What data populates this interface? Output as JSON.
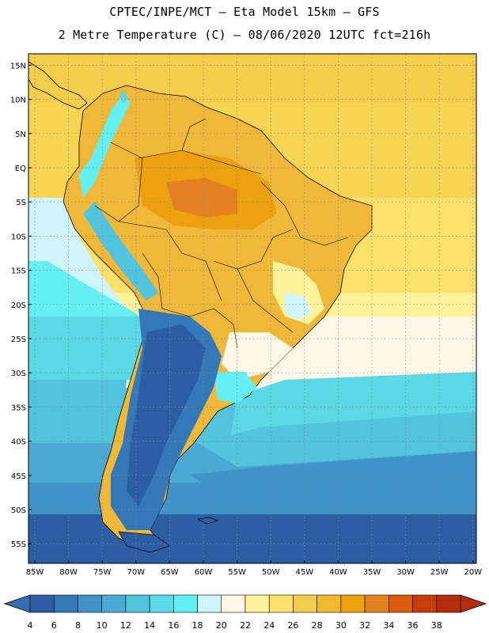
{
  "header": {
    "line1": "CPTEC/INPE/MCT –  Eta Model 15km – GFS",
    "line2": "2 Metre Temperature (C) – 08/06/2020 12UTC fct=216h"
  },
  "map": {
    "lat_labels": [
      "15N",
      "10N",
      "5N",
      "EQ",
      "5S",
      "10S",
      "15S",
      "20S",
      "25S",
      "30S",
      "35S",
      "40S",
      "45S",
      "50S",
      "55S"
    ],
    "lon_labels": [
      "85W",
      "80W",
      "75W",
      "70W",
      "65W",
      "60W",
      "55W",
      "50W",
      "45W",
      "40W",
      "35W",
      "30W",
      "25W",
      "20W"
    ],
    "lat_range": [
      17.5,
      -58
    ],
    "lon_range": [
      -85.5,
      -20
    ],
    "grid": "dotted",
    "land_outline_color": "#000000"
  },
  "colorbar": {
    "values": [
      "4",
      "6",
      "8",
      "10",
      "12",
      "14",
      "16",
      "18",
      "20",
      "22",
      "24",
      "26",
      "28",
      "30",
      "32",
      "34",
      "36",
      "38"
    ],
    "colors": [
      "#2d5ea3",
      "#3478b8",
      "#3f93c8",
      "#4aaad3",
      "#52c4dd",
      "#5cd9e6",
      "#64f0f2",
      "#cdf5fb",
      "#fff8e6",
      "#fff29a",
      "#fae26a",
      "#f4cd4a",
      "#efb931",
      "#eea10f",
      "#e48221",
      "#db5d0b",
      "#c53e09",
      "#b52d08"
    ],
    "left_arrow_color": "#336fb0",
    "right_arrow_color": "#b02f07"
  }
}
